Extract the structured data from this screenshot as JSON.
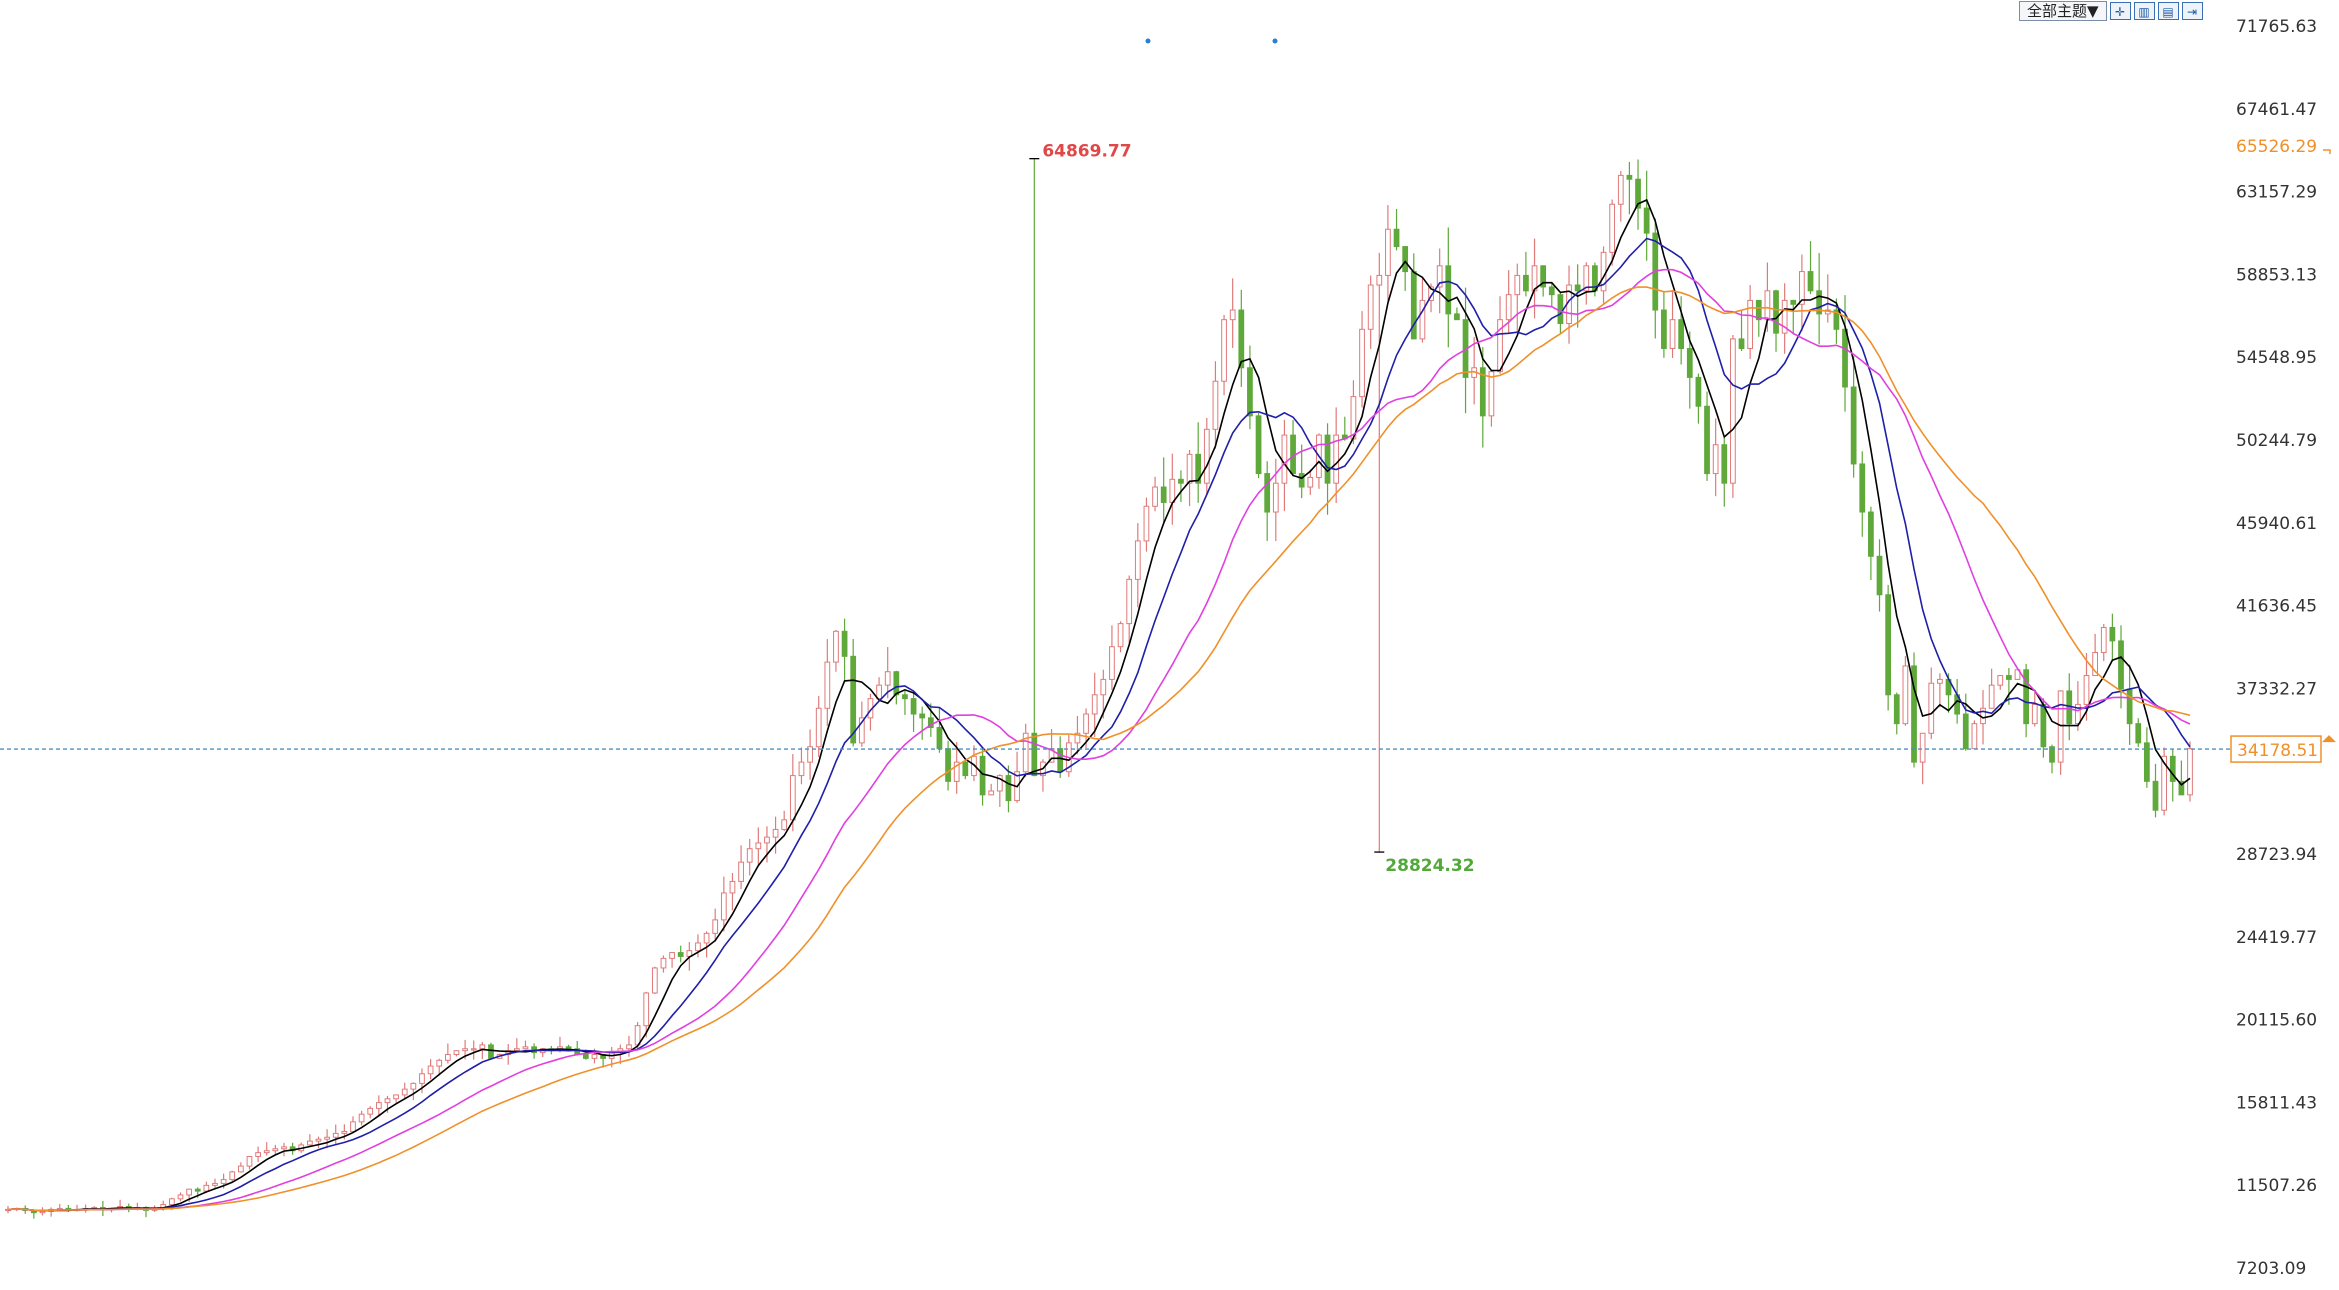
{
  "toolbar": {
    "theme_label": "全部主题▼",
    "icons": [
      "crosshair-icon",
      "candle-compare-icon",
      "bar-compare-icon",
      "fit-screen-icon"
    ]
  },
  "chart_data": {
    "type": "candlestick",
    "ylim": [
      7203.09,
      71765.63
    ],
    "y_ticks": [
      "71765.63",
      "67461.47",
      "63157.29",
      "58853.13",
      "54548.95",
      "50244.79",
      "45940.61",
      "41636.45",
      "37332.27",
      "28723.94",
      "24419.77",
      "20115.60",
      "15811.43",
      "11507.26",
      "7203.09"
    ],
    "y_tick_values": [
      71765.63,
      67461.47,
      63157.29,
      58853.13,
      54548.95,
      50244.79,
      45940.61,
      41636.45,
      37332.27,
      28723.94,
      24419.77,
      20115.6,
      15811.43,
      11507.26,
      7203.09
    ],
    "current_price": {
      "value": 34178.51,
      "label": "34178.51"
    },
    "ma_last_value": {
      "value": 65526.29,
      "label": "65526.29"
    },
    "high_marker": {
      "value": 64869.77,
      "label": "64869.77",
      "index": 119
    },
    "low_marker": {
      "value": 28824.32,
      "label": "28824.32",
      "index": 159
    },
    "legend_position": "none",
    "grid": false,
    "colors": {
      "up": "#e07a7a",
      "down": "#5fa83a",
      "ma_fast": "#000000",
      "ma_mid": "#1f1fa8",
      "ma_slow": "#e040e0",
      "ma_long": "#f0902a",
      "price_line": "#4a90c8",
      "axis_text": "#333333",
      "price_box": "#f0902a",
      "high_text": "#e04848",
      "low_text": "#52a83a"
    },
    "closes": [
      10250,
      10300,
      10200,
      10080,
      10150,
      10250,
      10300,
      10200,
      10250,
      10300,
      10350,
      10250,
      10300,
      10400,
      10300,
      10350,
      10200,
      10300,
      10500,
      10800,
      11000,
      11300,
      11200,
      11500,
      11600,
      11800,
      12200,
      12500,
      13000,
      13200,
      13300,
      13400,
      13500,
      13300,
      13600,
      13800,
      13900,
      14000,
      14200,
      14300,
      14800,
      15200,
      15500,
      15800,
      16000,
      16200,
      16500,
      16800,
      17300,
      17700,
      18000,
      18300,
      18500,
      18600,
      18600,
      18800,
      18100,
      18300,
      18500,
      18600,
      18700,
      18400,
      18600,
      18500,
      18700,
      18600,
      18300,
      18100,
      18300,
      18100,
      18400,
      18600,
      18800,
      19800,
      21500,
      22800,
      23300,
      23600,
      23400,
      23700,
      24100,
      24600,
      25300,
      26700,
      27300,
      28300,
      29000,
      29300,
      29600,
      30000,
      30500,
      32800,
      33500,
      34300,
      36300,
      38700,
      40300,
      39000,
      34500,
      35800,
      36800,
      37500,
      38200,
      37000,
      36800,
      36000,
      35800,
      35300,
      34200,
      32500,
      33500,
      32800,
      33800,
      31800,
      32000,
      32800,
      31500,
      33000,
      35000,
      32800,
      33500,
      34200,
      33000,
      34500,
      35000,
      36000,
      37000,
      37800,
      39500,
      40700,
      43000,
      45000,
      46800,
      47800,
      47000,
      48200,
      48000,
      49500,
      48000,
      50800,
      53300,
      56500,
      57000,
      54000,
      51500,
      48500,
      46500,
      48000,
      50500,
      48500,
      47800,
      48300,
      50500,
      48000,
      50500,
      50300,
      52500,
      56000,
      58300,
      58800,
      61200,
      60300,
      59000,
      55500,
      57500,
      58200,
      59300,
      56800,
      56500,
      53500,
      54000,
      51500,
      53800,
      56500,
      57800,
      58800,
      58000,
      59300,
      58200,
      57800,
      56300,
      58300,
      58000,
      59300,
      58000,
      60000,
      62500,
      64000,
      63800,
      62300,
      61000,
      57000,
      55000,
      56500,
      55000,
      53500,
      52000,
      48500,
      50000,
      48000,
      55500,
      55000,
      57500,
      56500,
      58000,
      55800,
      57500,
      57300,
      59000,
      58000,
      56800,
      57000,
      56000,
      53000,
      49000,
      46500,
      44200,
      42200,
      37000,
      35500,
      38500,
      33500,
      35000,
      37600,
      37800,
      37000,
      36000,
      34200,
      35500,
      36300,
      37500,
      38000,
      37800,
      38300,
      35500,
      36500,
      34300,
      33500,
      37200,
      35500,
      36500,
      38000,
      39200,
      40500,
      39800,
      37300,
      35500,
      34500,
      32500,
      31000,
      33800,
      32500,
      31800,
      34200
    ]
  }
}
